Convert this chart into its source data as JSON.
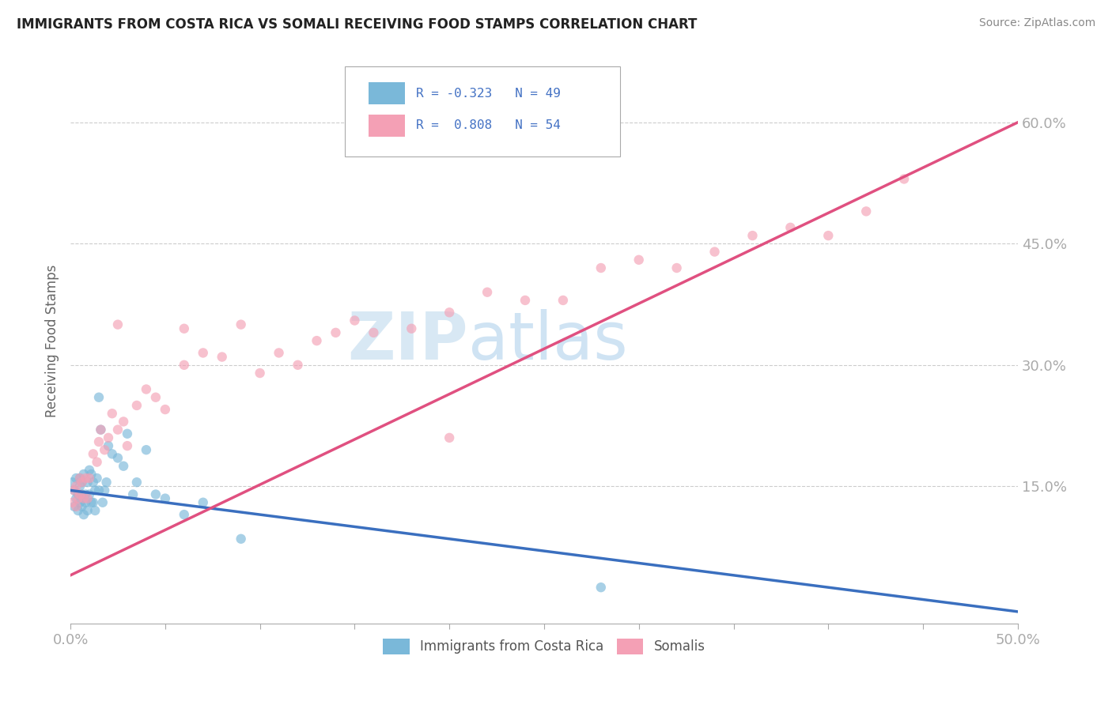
{
  "title": "IMMIGRANTS FROM COSTA RICA VS SOMALI RECEIVING FOOD STAMPS CORRELATION CHART",
  "source": "Source: ZipAtlas.com",
  "ylabel": "Receiving Food Stamps",
  "xlim": [
    0.0,
    0.5
  ],
  "ylim": [
    -0.02,
    0.68
  ],
  "xticks": [
    0.0,
    0.05,
    0.1,
    0.15,
    0.2,
    0.25,
    0.3,
    0.35,
    0.4,
    0.45,
    0.5
  ],
  "yticks": [
    0.15,
    0.3,
    0.45,
    0.6
  ],
  "yticklabels": [
    "15.0%",
    "30.0%",
    "45.0%",
    "60.0%"
  ],
  "grid_color": "#cccccc",
  "background_color": "#ffffff",
  "color_blue": "#7ab8d9",
  "color_pink": "#f4a0b5",
  "color_blue_line": "#3a6fbf",
  "color_pink_line": "#e05080",
  "title_color": "#222222",
  "axis_label_color": "#4472c4",
  "costa_rica_x": [
    0.001,
    0.002,
    0.002,
    0.003,
    0.003,
    0.004,
    0.004,
    0.005,
    0.005,
    0.005,
    0.006,
    0.006,
    0.006,
    0.007,
    0.007,
    0.007,
    0.008,
    0.008,
    0.009,
    0.009,
    0.01,
    0.01,
    0.011,
    0.011,
    0.012,
    0.012,
    0.013,
    0.013,
    0.014,
    0.015,
    0.015,
    0.016,
    0.017,
    0.018,
    0.019,
    0.02,
    0.022,
    0.025,
    0.028,
    0.03,
    0.033,
    0.035,
    0.04,
    0.045,
    0.05,
    0.06,
    0.07,
    0.09,
    0.28
  ],
  "costa_rica_y": [
    0.155,
    0.145,
    0.125,
    0.16,
    0.135,
    0.14,
    0.12,
    0.15,
    0.16,
    0.13,
    0.125,
    0.155,
    0.14,
    0.115,
    0.135,
    0.165,
    0.14,
    0.13,
    0.12,
    0.155,
    0.17,
    0.14,
    0.13,
    0.165,
    0.155,
    0.13,
    0.145,
    0.12,
    0.16,
    0.145,
    0.26,
    0.22,
    0.13,
    0.145,
    0.155,
    0.2,
    0.19,
    0.185,
    0.175,
    0.215,
    0.14,
    0.155,
    0.195,
    0.14,
    0.135,
    0.115,
    0.13,
    0.085,
    0.025
  ],
  "somali_x": [
    0.001,
    0.002,
    0.003,
    0.003,
    0.004,
    0.005,
    0.005,
    0.006,
    0.007,
    0.008,
    0.009,
    0.01,
    0.012,
    0.014,
    0.016,
    0.018,
    0.02,
    0.022,
    0.025,
    0.028,
    0.03,
    0.035,
    0.04,
    0.045,
    0.05,
    0.06,
    0.07,
    0.08,
    0.09,
    0.1,
    0.11,
    0.12,
    0.13,
    0.14,
    0.15,
    0.16,
    0.18,
    0.2,
    0.22,
    0.24,
    0.26,
    0.28,
    0.3,
    0.32,
    0.34,
    0.36,
    0.38,
    0.4,
    0.42,
    0.44,
    0.06,
    0.025,
    0.015,
    0.2
  ],
  "somali_y": [
    0.13,
    0.145,
    0.15,
    0.125,
    0.135,
    0.16,
    0.14,
    0.155,
    0.135,
    0.16,
    0.135,
    0.16,
    0.19,
    0.18,
    0.22,
    0.195,
    0.21,
    0.24,
    0.22,
    0.23,
    0.2,
    0.25,
    0.27,
    0.26,
    0.245,
    0.3,
    0.315,
    0.31,
    0.35,
    0.29,
    0.315,
    0.3,
    0.33,
    0.34,
    0.355,
    0.34,
    0.345,
    0.365,
    0.39,
    0.38,
    0.38,
    0.42,
    0.43,
    0.42,
    0.44,
    0.46,
    0.47,
    0.46,
    0.49,
    0.53,
    0.345,
    0.35,
    0.205,
    0.21
  ],
  "blue_line_x0": 0.0,
  "blue_line_x1": 0.5,
  "blue_line_y0": 0.145,
  "blue_line_y1": -0.005,
  "pink_line_x0": 0.0,
  "pink_line_x1": 0.5,
  "pink_line_y0": 0.04,
  "pink_line_y1": 0.6,
  "legend_text1": "R = -0.323   N = 49",
  "legend_text2": "R =  0.808   N = 54"
}
